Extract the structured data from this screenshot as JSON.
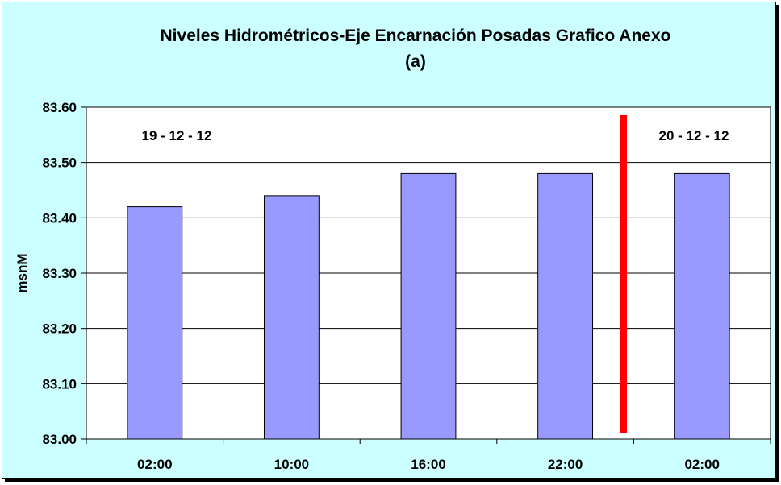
{
  "chart_data": {
    "type": "bar",
    "title": "Niveles Hidrométricos-Eje Encarnación Posadas Grafico Anexo",
    "subtitle": "(a)",
    "ylabel": "msnM",
    "xlabel": "",
    "categories": [
      "02:00",
      "10:00",
      "16:00",
      "22:00",
      "02:00"
    ],
    "values": [
      83.42,
      83.44,
      83.48,
      83.48,
      83.48
    ],
    "ylim": [
      83.0,
      83.6
    ],
    "yticks": [
      "83.00",
      "83.10",
      "83.20",
      "83.30",
      "83.40",
      "83.50",
      "83.60"
    ],
    "ytick_values": [
      83.0,
      83.1,
      83.2,
      83.3,
      83.4,
      83.5,
      83.6
    ],
    "grid": true,
    "bar_color": "#9999ff",
    "background_color": "#ccffff",
    "plot_background": "#ffffff",
    "annotations": [
      {
        "text": "19 - 12 - 12"
      },
      {
        "text": "20 - 12 - 12"
      }
    ],
    "separator_color": "#ff0000"
  }
}
